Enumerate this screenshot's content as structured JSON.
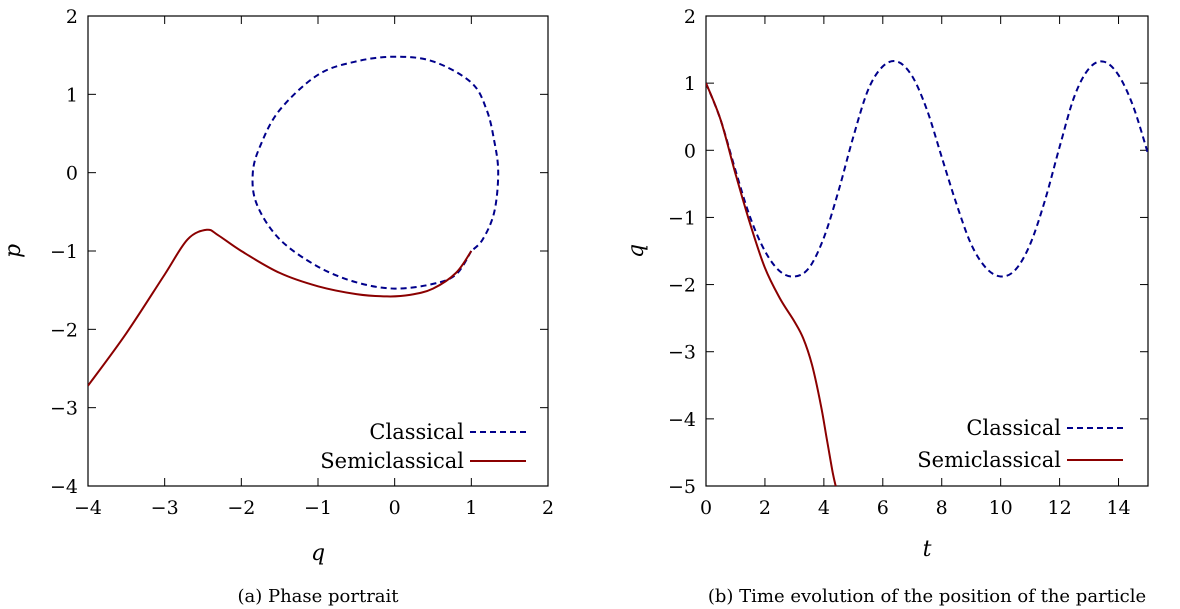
{
  "figure": {
    "captions": [
      "(a)  Phase portrait",
      "(b)  Time evolution of the position of the particle"
    ]
  },
  "colors": {
    "classical": "#00008b",
    "semiclassical": "#8b0000"
  },
  "chart_data": [
    {
      "type": "line",
      "title": "",
      "caption": "(a)  Phase portrait",
      "xlabel": "q",
      "ylabel": "p",
      "xlim": [
        -4,
        2
      ],
      "ylim": [
        -4,
        2
      ],
      "xticks": [
        -4,
        -3,
        -2,
        -1,
        0,
        1,
        2
      ],
      "yticks": [
        -4,
        -3,
        -2,
        -1,
        0,
        1,
        2
      ],
      "grid": false,
      "legend": "bottom-right",
      "series": [
        {
          "name": "Classical",
          "style": "dashed",
          "x": [
            1.0,
            0.8,
            0.5,
            0.0,
            -0.5,
            -1.0,
            -1.5,
            -1.8,
            -1.85,
            -1.75,
            -1.5,
            -1.0,
            -0.5,
            0.0,
            0.5,
            1.0,
            1.2,
            1.3,
            1.35,
            1.3,
            1.15,
            1.0
          ],
          "y": [
            -1.0,
            -1.3,
            -1.42,
            -1.48,
            -1.4,
            -1.2,
            -0.85,
            -0.4,
            0.0,
            0.35,
            0.8,
            1.25,
            1.42,
            1.48,
            1.42,
            1.15,
            0.8,
            0.4,
            0.0,
            -0.5,
            -0.85,
            -1.0
          ]
        },
        {
          "name": "Semiclassical",
          "style": "solid",
          "x": [
            1.0,
            0.8,
            0.5,
            0.2,
            -0.1,
            -0.5,
            -1.0,
            -1.5,
            -2.0,
            -2.3,
            -2.45,
            -2.7,
            -3.0,
            -3.5,
            -4.0
          ],
          "y": [
            -1.0,
            -1.28,
            -1.48,
            -1.56,
            -1.58,
            -1.55,
            -1.45,
            -1.28,
            -1.0,
            -0.8,
            -0.73,
            -0.85,
            -1.3,
            -2.05,
            -2.72
          ]
        }
      ]
    },
    {
      "type": "line",
      "title": "",
      "caption": "(b)  Time evolution of the position of the particle",
      "xlabel": "t",
      "ylabel": "q",
      "xlim": [
        0,
        15
      ],
      "ylim": [
        -5,
        2
      ],
      "xticks": [
        0,
        2,
        4,
        6,
        8,
        10,
        12,
        14
      ],
      "yticks": [
        -5,
        -4,
        -3,
        -2,
        -1,
        0,
        1,
        2
      ],
      "grid": false,
      "legend": "bottom-right",
      "series": [
        {
          "name": "Classical",
          "style": "dashed",
          "x": [
            0,
            0.5,
            1.0,
            1.5,
            2.0,
            2.5,
            3.0,
            3.5,
            4.0,
            4.5,
            5.0,
            5.5,
            6.0,
            6.5,
            7.0,
            7.5,
            8.0,
            8.5,
            9.0,
            9.5,
            10.0,
            10.5,
            11.0,
            11.5,
            12.0,
            12.5,
            13.0,
            13.5,
            14.0,
            14.5,
            15.0
          ],
          "y": [
            1.0,
            0.45,
            -0.3,
            -1.0,
            -1.5,
            -1.8,
            -1.88,
            -1.75,
            -1.3,
            -0.6,
            0.2,
            0.9,
            1.25,
            1.32,
            1.1,
            0.6,
            -0.1,
            -0.8,
            -1.4,
            -1.75,
            -1.88,
            -1.78,
            -1.4,
            -0.75,
            0.05,
            0.8,
            1.22,
            1.32,
            1.12,
            0.65,
            -0.05
          ]
        },
        {
          "name": "Semiclassical",
          "style": "solid",
          "x": [
            0,
            0.5,
            1.0,
            1.5,
            2.0,
            2.5,
            3.0,
            3.3,
            3.6,
            3.9,
            4.1,
            4.3,
            4.4
          ],
          "y": [
            1.0,
            0.45,
            -0.35,
            -1.1,
            -1.75,
            -2.2,
            -2.55,
            -2.8,
            -3.2,
            -3.8,
            -4.3,
            -4.8,
            -5.0
          ]
        }
      ]
    }
  ]
}
